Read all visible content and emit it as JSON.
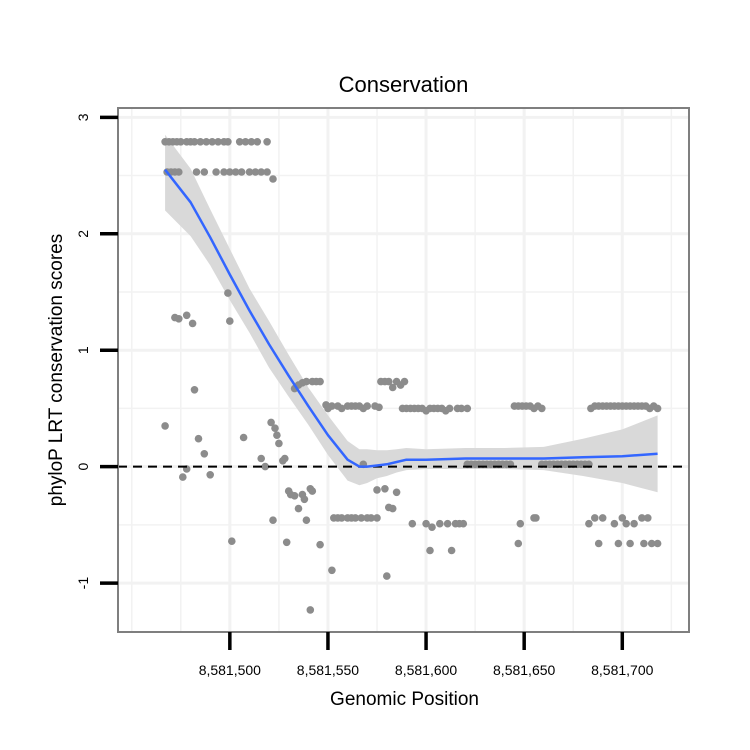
{
  "chart_data": {
    "type": "scatter",
    "title": "Conservation",
    "xlabel": "Genomic Position",
    "ylabel": "phyloP LRT conservation scores",
    "xlim": [
      8581443,
      8581734
    ],
    "ylim": [
      -1.42,
      3.08
    ],
    "x_ticks": [
      8581500,
      8581550,
      8581600,
      8581650,
      8581700
    ],
    "x_tick_labels": [
      "8,581,500",
      "8,581,550",
      "8,581,600",
      "8,581,650",
      "8,581,700"
    ],
    "y_ticks": [
      -1,
      0,
      1,
      2,
      3
    ],
    "y_tick_labels": [
      "-1",
      "0",
      "1",
      "2",
      "3"
    ],
    "reference_line": {
      "y": 0,
      "style": "dashed"
    },
    "colors": {
      "points": "#8c8c8c",
      "smooth_line": "#3366ff",
      "confidence_band": "#d9d9d9",
      "panel_border": "#7f7f7f",
      "grid": "#f2f2f2"
    },
    "series": [
      {
        "name": "points",
        "points": [
          [
            8581467,
            2.79
          ],
          [
            8581469,
            2.79
          ],
          [
            8581471,
            2.79
          ],
          [
            8581473,
            2.79
          ],
          [
            8581475,
            2.79
          ],
          [
            8581478,
            2.79
          ],
          [
            8581480,
            2.79
          ],
          [
            8581482,
            2.79
          ],
          [
            8581485,
            2.79
          ],
          [
            8581488,
            2.79
          ],
          [
            8581491,
            2.79
          ],
          [
            8581494,
            2.79
          ],
          [
            8581497,
            2.79
          ],
          [
            8581499,
            2.79
          ],
          [
            8581505,
            2.79
          ],
          [
            8581508,
            2.79
          ],
          [
            8581511,
            2.79
          ],
          [
            8581514,
            2.79
          ],
          [
            8581519,
            2.79
          ],
          [
            8581468,
            2.53
          ],
          [
            8581470,
            2.53
          ],
          [
            8581472,
            2.53
          ],
          [
            8581474,
            2.53
          ],
          [
            8581483,
            2.53
          ],
          [
            8581487,
            2.53
          ],
          [
            8581493,
            2.53
          ],
          [
            8581497,
            2.53
          ],
          [
            8581500,
            2.53
          ],
          [
            8581503,
            2.53
          ],
          [
            8581506,
            2.53
          ],
          [
            8581510,
            2.53
          ],
          [
            8581513,
            2.53
          ],
          [
            8581516,
            2.53
          ],
          [
            8581519,
            2.53
          ],
          [
            8581522,
            2.47
          ],
          [
            8581472,
            1.28
          ],
          [
            8581474,
            1.27
          ],
          [
            8581478,
            1.3
          ],
          [
            8581481,
            1.23
          ],
          [
            8581499,
            1.49
          ],
          [
            8581500,
            1.25
          ],
          [
            8581482,
            0.66
          ],
          [
            8581467,
            0.35
          ],
          [
            8581484,
            0.24
          ],
          [
            8581476,
            -0.09
          ],
          [
            8581478,
            -0.02
          ],
          [
            8581487,
            0.11
          ],
          [
            8581490,
            -0.07
          ],
          [
            8581501,
            -0.64
          ],
          [
            8581507,
            0.25
          ],
          [
            8581516,
            0.07
          ],
          [
            8581518,
            0.0
          ],
          [
            8581521,
            0.38
          ],
          [
            8581523,
            0.33
          ],
          [
            8581524,
            0.27
          ],
          [
            8581525,
            0.2
          ],
          [
            8581527,
            0.05
          ],
          [
            8581528,
            0.07
          ],
          [
            8581522,
            -0.46
          ],
          [
            8581529,
            -0.65
          ],
          [
            8581530,
            -0.21
          ],
          [
            8581531,
            -0.24
          ],
          [
            8581533,
            -0.25
          ],
          [
            8581535,
            -0.36
          ],
          [
            8581537,
            -0.24
          ],
          [
            8581538,
            -0.28
          ],
          [
            8581539,
            -0.46
          ],
          [
            8581541,
            -0.19
          ],
          [
            8581542,
            -0.21
          ],
          [
            8581546,
            -0.67
          ],
          [
            8581541,
            -1.23
          ],
          [
            8581552,
            -0.89
          ],
          [
            8581533,
            0.67
          ],
          [
            8581535,
            0.7
          ],
          [
            8581537,
            0.72
          ],
          [
            8581539,
            0.73
          ],
          [
            8581542,
            0.73
          ],
          [
            8581544,
            0.73
          ],
          [
            8581546,
            0.73
          ],
          [
            8581549,
            0.53
          ],
          [
            8581550,
            0.5
          ],
          [
            8581552,
            0.52
          ],
          [
            8581555,
            0.52
          ],
          [
            8581557,
            0.5
          ],
          [
            8581560,
            0.52
          ],
          [
            8581562,
            0.52
          ],
          [
            8581564,
            0.52
          ],
          [
            8581566,
            0.52
          ],
          [
            8581568,
            0.5
          ],
          [
            8581570,
            0.52
          ],
          [
            8581574,
            0.52
          ],
          [
            8581576,
            0.51
          ],
          [
            8581553,
            -0.44
          ],
          [
            8581555,
            -0.44
          ],
          [
            8581557,
            -0.44
          ],
          [
            8581560,
            -0.44
          ],
          [
            8581562,
            -0.44
          ],
          [
            8581564,
            -0.44
          ],
          [
            8581567,
            -0.44
          ],
          [
            8581570,
            -0.44
          ],
          [
            8581572,
            -0.44
          ],
          [
            8581575,
            -0.44
          ],
          [
            8581575,
            -0.2
          ],
          [
            8581579,
            -0.19
          ],
          [
            8581581,
            -0.35
          ],
          [
            8581583,
            -0.36
          ],
          [
            8581585,
            -0.22
          ],
          [
            8581580,
            -0.94
          ],
          [
            8581568,
            0.02
          ],
          [
            8581577,
            0.73
          ],
          [
            8581579,
            0.73
          ],
          [
            8581581,
            0.73
          ],
          [
            8581583,
            0.68
          ],
          [
            8581585,
            0.73
          ],
          [
            8581587,
            0.7
          ],
          [
            8581589,
            0.73
          ],
          [
            8581588,
            0.5
          ],
          [
            8581590,
            0.5
          ],
          [
            8581592,
            0.5
          ],
          [
            8581594,
            0.5
          ],
          [
            8581596,
            0.5
          ],
          [
            8581598,
            0.5
          ],
          [
            8581600,
            0.48
          ],
          [
            8581602,
            0.5
          ],
          [
            8581604,
            0.5
          ],
          [
            8581606,
            0.5
          ],
          [
            8581608,
            0.5
          ],
          [
            8581610,
            0.48
          ],
          [
            8581612,
            0.5
          ],
          [
            8581616,
            0.5
          ],
          [
            8581618,
            0.5
          ],
          [
            8581621,
            0.5
          ],
          [
            8581593,
            -0.49
          ],
          [
            8581600,
            -0.49
          ],
          [
            8581603,
            -0.52
          ],
          [
            8581607,
            -0.49
          ],
          [
            8581611,
            -0.49
          ],
          [
            8581615,
            -0.49
          ],
          [
            8581617,
            -0.49
          ],
          [
            8581619,
            -0.49
          ],
          [
            8581602,
            -0.72
          ],
          [
            8581613,
            -0.72
          ],
          [
            8581621,
            0.02
          ],
          [
            8581623,
            0.02
          ],
          [
            8581625,
            0.02
          ],
          [
            8581627,
            0.02
          ],
          [
            8581629,
            0.02
          ],
          [
            8581631,
            0.02
          ],
          [
            8581633,
            0.02
          ],
          [
            8581635,
            0.02
          ],
          [
            8581637,
            0.02
          ],
          [
            8581639,
            0.02
          ],
          [
            8581641,
            0.02
          ],
          [
            8581643,
            0.02
          ],
          [
            8581645,
            0.52
          ],
          [
            8581647,
            0.52
          ],
          [
            8581649,
            0.52
          ],
          [
            8581651,
            0.52
          ],
          [
            8581653,
            0.52
          ],
          [
            8581655,
            0.5
          ],
          [
            8581657,
            0.52
          ],
          [
            8581659,
            0.5
          ],
          [
            8581648,
            -0.49
          ],
          [
            8581647,
            -0.66
          ],
          [
            8581655,
            -0.44
          ],
          [
            8581656,
            -0.44
          ],
          [
            8581659,
            0.02
          ],
          [
            8581661,
            0.02
          ],
          [
            8581663,
            0.02
          ],
          [
            8581665,
            0.02
          ],
          [
            8581667,
            0.02
          ],
          [
            8581669,
            0.02
          ],
          [
            8581671,
            0.02
          ],
          [
            8581673,
            0.02
          ],
          [
            8581675,
            0.02
          ],
          [
            8581677,
            0.02
          ],
          [
            8581679,
            0.02
          ],
          [
            8581681,
            0.02
          ],
          [
            8581683,
            0.02
          ],
          [
            8581684,
            0.5
          ],
          [
            8581686,
            0.52
          ],
          [
            8581688,
            0.52
          ],
          [
            8581690,
            0.52
          ],
          [
            8581692,
            0.52
          ],
          [
            8581694,
            0.52
          ],
          [
            8581696,
            0.52
          ],
          [
            8581698,
            0.52
          ],
          [
            8581700,
            0.52
          ],
          [
            8581702,
            0.52
          ],
          [
            8581704,
            0.52
          ],
          [
            8581706,
            0.52
          ],
          [
            8581708,
            0.52
          ],
          [
            8581710,
            0.52
          ],
          [
            8581712,
            0.52
          ],
          [
            8581714,
            0.5
          ],
          [
            8581716,
            0.52
          ],
          [
            8581718,
            0.5
          ],
          [
            8581683,
            -0.49
          ],
          [
            8581686,
            -0.44
          ],
          [
            8581690,
            -0.44
          ],
          [
            8581688,
            -0.66
          ],
          [
            8581696,
            -0.49
          ],
          [
            8581700,
            -0.44
          ],
          [
            8581702,
            -0.49
          ],
          [
            8581706,
            -0.49
          ],
          [
            8581710,
            -0.44
          ],
          [
            8581713,
            -0.44
          ],
          [
            8581698,
            -0.66
          ],
          [
            8581704,
            -0.66
          ],
          [
            8581711,
            -0.66
          ],
          [
            8581715,
            -0.66
          ],
          [
            8581718,
            -0.66
          ]
        ]
      },
      {
        "name": "loess smooth",
        "x": [
          8581467,
          8581480,
          8581490,
          8581500,
          8581510,
          8581520,
          8581530,
          8581540,
          8581550,
          8581560,
          8581566,
          8581570,
          8581575,
          8581580,
          8581585,
          8581590,
          8581600,
          8581620,
          8581640,
          8581660,
          8581680,
          8581700,
          8581718
        ],
        "y": [
          2.55,
          2.27,
          1.97,
          1.65,
          1.34,
          1.05,
          0.78,
          0.52,
          0.27,
          0.06,
          0.0,
          0.0,
          0.01,
          0.02,
          0.04,
          0.06,
          0.06,
          0.07,
          0.07,
          0.07,
          0.08,
          0.09,
          0.11
        ],
        "ci_lower": [
          2.2,
          1.98,
          1.73,
          1.43,
          1.15,
          0.85,
          0.6,
          0.36,
          0.1,
          -0.12,
          -0.16,
          -0.14,
          -0.1,
          -0.08,
          -0.05,
          -0.03,
          -0.02,
          -0.02,
          -0.02,
          -0.03,
          -0.08,
          -0.14,
          -0.22
        ],
        "ci_upper": [
          2.85,
          2.56,
          2.21,
          1.87,
          1.53,
          1.25,
          0.96,
          0.68,
          0.44,
          0.22,
          0.15,
          0.15,
          0.14,
          0.14,
          0.15,
          0.16,
          0.15,
          0.16,
          0.16,
          0.17,
          0.24,
          0.32,
          0.44
        ]
      }
    ]
  }
}
